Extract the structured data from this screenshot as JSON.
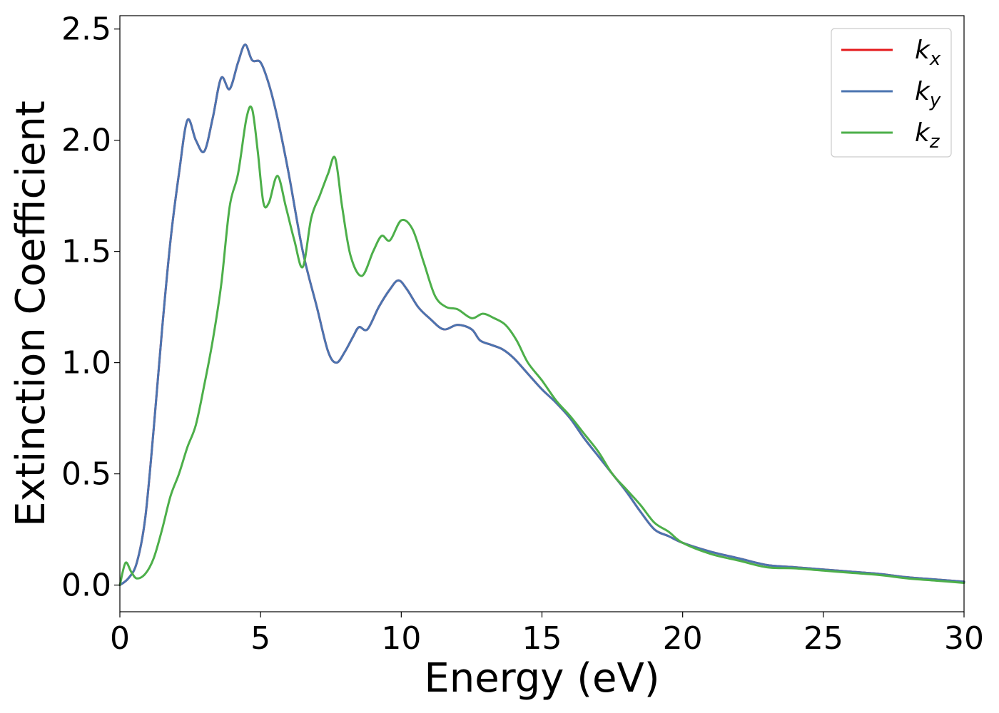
{
  "chart_data": {
    "type": "line",
    "title": "",
    "xlabel": "Energy (eV)",
    "ylabel": "Extinction Coefficient",
    "xlim": [
      0,
      30
    ],
    "ylim": [
      -0.12,
      2.56
    ],
    "xticks": [
      0,
      5,
      10,
      15,
      20,
      25,
      30
    ],
    "xtick_labels": [
      "0",
      "5",
      "10",
      "15",
      "20",
      "25",
      "30"
    ],
    "yticks": [
      0.0,
      0.5,
      1.0,
      1.5,
      2.0,
      2.5
    ],
    "ytick_labels": [
      "0.0",
      "0.5",
      "1.0",
      "1.5",
      "2.0",
      "2.5"
    ],
    "grid": false,
    "legend_position": "top-right",
    "series": [
      {
        "name": "k",
        "sub": "x",
        "color": "#e41a1c",
        "x": [
          0,
          0.3,
          0.6,
          0.9,
          1.2,
          1.5,
          1.8,
          2.1,
          2.4,
          2.7,
          3.0,
          3.3,
          3.6,
          3.9,
          4.2,
          4.45,
          4.7,
          5.0,
          5.3,
          5.6,
          6.0,
          6.5,
          7.0,
          7.4,
          7.7,
          8.0,
          8.3,
          8.5,
          8.8,
          9.2,
          9.6,
          9.9,
          10.2,
          10.6,
          11.0,
          11.5,
          12.0,
          12.5,
          12.8,
          13.2,
          13.6,
          14.0,
          14.5,
          15.0,
          15.5,
          16.0,
          16.5,
          17.0,
          17.5,
          18.0,
          18.5,
          19.0,
          19.5,
          20.0,
          21.0,
          22.0,
          23.0,
          24.0,
          25.0,
          26.0,
          27.0,
          28.0,
          29.0,
          30.0
        ],
        "y": [
          0.0,
          0.03,
          0.1,
          0.3,
          0.7,
          1.15,
          1.55,
          1.85,
          2.09,
          2.0,
          1.95,
          2.1,
          2.28,
          2.23,
          2.35,
          2.43,
          2.36,
          2.35,
          2.25,
          2.1,
          1.85,
          1.5,
          1.25,
          1.05,
          1.0,
          1.05,
          1.12,
          1.16,
          1.15,
          1.25,
          1.33,
          1.37,
          1.33,
          1.25,
          1.2,
          1.15,
          1.17,
          1.15,
          1.1,
          1.08,
          1.06,
          1.02,
          0.95,
          0.88,
          0.82,
          0.75,
          0.66,
          0.58,
          0.5,
          0.42,
          0.33,
          0.25,
          0.22,
          0.19,
          0.15,
          0.12,
          0.09,
          0.08,
          0.07,
          0.06,
          0.05,
          0.035,
          0.025,
          0.015
        ]
      },
      {
        "name": "k",
        "sub": "y",
        "color": "#4b74b0",
        "x": [
          0,
          0.3,
          0.6,
          0.9,
          1.2,
          1.5,
          1.8,
          2.1,
          2.4,
          2.7,
          3.0,
          3.3,
          3.6,
          3.9,
          4.2,
          4.45,
          4.7,
          5.0,
          5.3,
          5.6,
          6.0,
          6.5,
          7.0,
          7.4,
          7.7,
          8.0,
          8.3,
          8.5,
          8.8,
          9.2,
          9.6,
          9.9,
          10.2,
          10.6,
          11.0,
          11.5,
          12.0,
          12.5,
          12.8,
          13.2,
          13.6,
          14.0,
          14.5,
          15.0,
          15.5,
          16.0,
          16.5,
          17.0,
          17.5,
          18.0,
          18.5,
          19.0,
          19.5,
          20.0,
          21.0,
          22.0,
          23.0,
          24.0,
          25.0,
          26.0,
          27.0,
          28.0,
          29.0,
          30.0
        ],
        "y": [
          0.0,
          0.03,
          0.1,
          0.3,
          0.7,
          1.15,
          1.55,
          1.85,
          2.09,
          2.0,
          1.95,
          2.1,
          2.28,
          2.23,
          2.35,
          2.43,
          2.36,
          2.35,
          2.25,
          2.1,
          1.85,
          1.5,
          1.25,
          1.05,
          1.0,
          1.05,
          1.12,
          1.16,
          1.15,
          1.25,
          1.33,
          1.37,
          1.33,
          1.25,
          1.2,
          1.15,
          1.17,
          1.15,
          1.1,
          1.08,
          1.06,
          1.02,
          0.95,
          0.88,
          0.82,
          0.75,
          0.66,
          0.58,
          0.5,
          0.42,
          0.33,
          0.25,
          0.22,
          0.19,
          0.15,
          0.12,
          0.09,
          0.08,
          0.07,
          0.06,
          0.05,
          0.035,
          0.025,
          0.015
        ]
      },
      {
        "name": "k",
        "sub": "z",
        "color": "#4daf4a",
        "x": [
          0,
          0.2,
          0.4,
          0.6,
          0.9,
          1.2,
          1.5,
          1.8,
          2.1,
          2.4,
          2.7,
          3.0,
          3.3,
          3.6,
          3.9,
          4.2,
          4.5,
          4.7,
          4.9,
          5.1,
          5.3,
          5.6,
          5.9,
          6.2,
          6.5,
          6.8,
          7.1,
          7.4,
          7.65,
          7.9,
          8.2,
          8.6,
          9.0,
          9.3,
          9.6,
          10.0,
          10.4,
          10.8,
          11.2,
          11.6,
          12.0,
          12.5,
          12.9,
          13.3,
          13.7,
          14.1,
          14.5,
          15.0,
          15.5,
          16.0,
          16.5,
          17.0,
          17.5,
          18.0,
          18.5,
          19.0,
          19.5,
          20.0,
          21.0,
          22.0,
          23.0,
          24.0,
          25.0,
          26.0,
          27.0,
          28.0,
          29.0,
          30.0
        ],
        "y": [
          0.0,
          0.1,
          0.06,
          0.03,
          0.05,
          0.12,
          0.25,
          0.4,
          0.5,
          0.62,
          0.72,
          0.9,
          1.1,
          1.35,
          1.7,
          1.85,
          2.1,
          2.14,
          1.95,
          1.72,
          1.72,
          1.84,
          1.7,
          1.55,
          1.43,
          1.65,
          1.75,
          1.85,
          1.92,
          1.7,
          1.48,
          1.39,
          1.5,
          1.57,
          1.55,
          1.64,
          1.6,
          1.45,
          1.3,
          1.25,
          1.24,
          1.2,
          1.22,
          1.2,
          1.17,
          1.1,
          1.0,
          0.92,
          0.83,
          0.76,
          0.68,
          0.6,
          0.5,
          0.43,
          0.36,
          0.28,
          0.24,
          0.19,
          0.14,
          0.11,
          0.08,
          0.075,
          0.065,
          0.055,
          0.045,
          0.03,
          0.02,
          0.01
        ]
      }
    ]
  }
}
